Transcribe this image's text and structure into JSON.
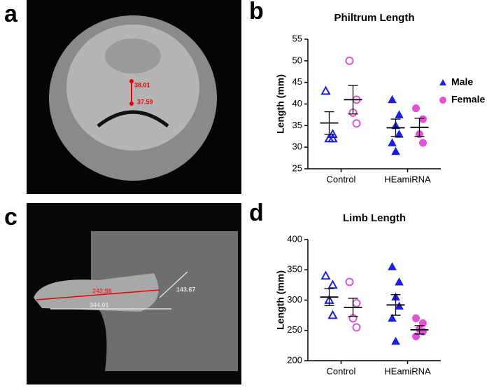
{
  "panels": {
    "letters": [
      "a",
      "b",
      "c",
      "d"
    ],
    "a_measures": [
      "38.01",
      "37.59"
    ],
    "c_measures": [
      "242.98",
      "143.67",
      "344.01"
    ]
  },
  "chart_data": [
    {
      "type": "dot",
      "title": "Philtrum Length",
      "y_label": "Length (mm)",
      "categories": [
        "Control",
        "HEamiRNA"
      ],
      "filled": [
        false,
        true
      ],
      "series": [
        {
          "name": "Male",
          "color": "#1e1ee0",
          "marker": "triangle",
          "values": [
            [
              43,
              33,
              32,
              32
            ],
            [
              41,
              37.5,
              35,
              33,
              31,
              29
            ]
          ],
          "mean": [
            35.6,
            34.5
          ],
          "sem": [
            2.6,
            2
          ]
        },
        {
          "name": "Female",
          "color": "#e052d8",
          "marker": "circle",
          "values": [
            [
              50,
              41,
              38,
              35.5
            ],
            [
              39,
              36.5,
              33,
              31
            ]
          ],
          "mean": [
            41,
            34.6
          ],
          "sem": [
            3.3,
            2.1
          ]
        }
      ],
      "ylim": [
        25,
        55
      ],
      "yticks": [
        25,
        30,
        35,
        40,
        45,
        50,
        55
      ],
      "legend": "right"
    },
    {
      "type": "dot",
      "title": "Limb Length",
      "y_label": "Length (mm)",
      "categories": [
        "Control",
        "HEamiRNA"
      ],
      "filled": [
        false,
        true
      ],
      "series": [
        {
          "name": "Male",
          "color": "#1e1ee0",
          "marker": "triangle",
          "values": [
            [
              340,
              325,
              300,
              275
            ],
            [
              355,
              330,
              305,
              290,
              270,
              232
            ]
          ],
          "mean": [
            305,
            292
          ],
          "sem": [
            14,
            17
          ]
        },
        {
          "name": "Female",
          "color": "#e052d8",
          "marker": "circle",
          "values": [
            [
              330,
              295,
              270,
              255
            ],
            [
              270,
              262,
              252,
              248,
              240
            ]
          ],
          "mean": [
            288,
            251
          ],
          "sem": [
            15,
            7
          ]
        }
      ],
      "ylim": [
        200,
        400
      ],
      "yticks": [
        200,
        250,
        300,
        350,
        400
      ]
    }
  ]
}
